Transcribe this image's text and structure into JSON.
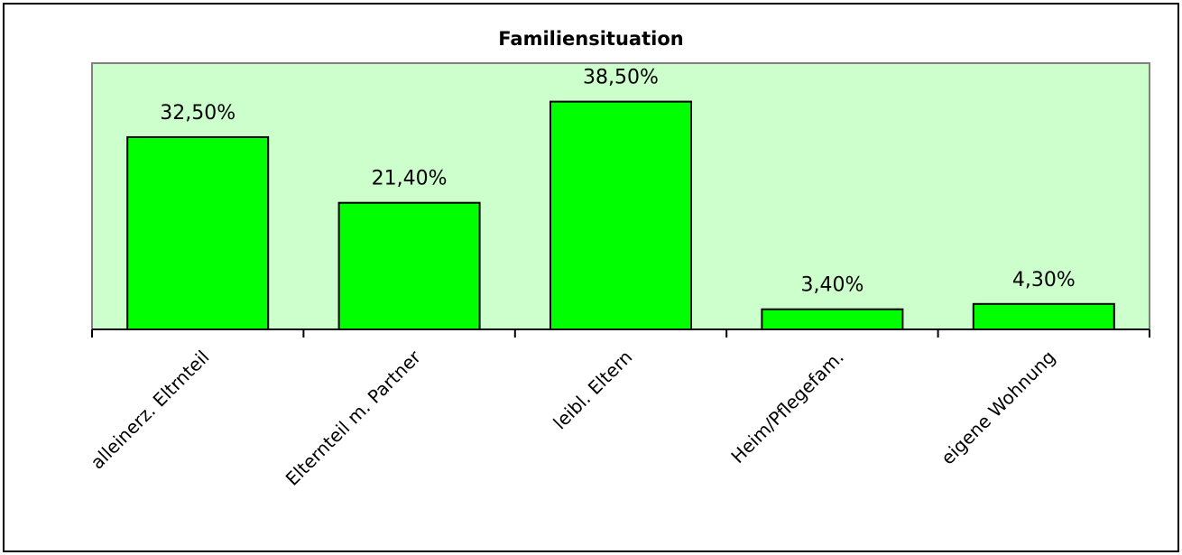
{
  "chart_data": {
    "type": "bar",
    "title": "Familiensituation",
    "categories": [
      "alleinerz. Eltrnteil",
      "Elternteil m. Partner",
      "leibl. Eltern",
      "Heim/Pflegefam.",
      "eigene Wohnung"
    ],
    "values": [
      32.5,
      21.4,
      38.5,
      3.4,
      4.3
    ],
    "value_labels": [
      "32,50%",
      "21,40%",
      "38,50%",
      "3,40%",
      "4,30%"
    ],
    "color": "#00ff00",
    "ylim": [
      0,
      45
    ]
  }
}
